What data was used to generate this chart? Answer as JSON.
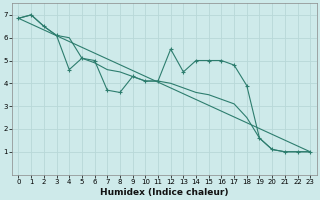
{
  "xlabel": "Humidex (Indice chaleur)",
  "xlim": [
    -0.5,
    23.5
  ],
  "ylim": [
    0,
    7.5
  ],
  "yticks": [
    1,
    2,
    3,
    4,
    5,
    6,
    7
  ],
  "xticks": [
    0,
    1,
    2,
    3,
    4,
    5,
    6,
    7,
    8,
    9,
    10,
    11,
    12,
    13,
    14,
    15,
    16,
    17,
    18,
    19,
    20,
    21,
    22,
    23
  ],
  "bg_color": "#ceeaea",
  "grid_color": "#b8d8d8",
  "line_color": "#2d7d6e",
  "series1_x": [
    0,
    1,
    2,
    3,
    4,
    5,
    6,
    7,
    8,
    9,
    10,
    11,
    12,
    13,
    14,
    15,
    16,
    17,
    18,
    19,
    20,
    21,
    22,
    23
  ],
  "series1_y": [
    6.85,
    7.0,
    6.5,
    6.1,
    4.6,
    5.1,
    5.0,
    3.7,
    3.6,
    4.3,
    4.1,
    4.1,
    5.5,
    4.5,
    5.0,
    5.0,
    5.0,
    4.8,
    3.9,
    1.6,
    1.1,
    1.0,
    1.0,
    1.0
  ],
  "series2_x": [
    0,
    1,
    2,
    3,
    4,
    5,
    6,
    7,
    8,
    9,
    10,
    11,
    12,
    13,
    14,
    15,
    16,
    17,
    18,
    19,
    20,
    21,
    22,
    23
  ],
  "series2_y": [
    6.85,
    7.0,
    6.5,
    6.1,
    6.0,
    5.1,
    4.9,
    4.6,
    4.5,
    4.3,
    4.1,
    4.1,
    4.0,
    3.8,
    3.6,
    3.5,
    3.3,
    3.1,
    2.5,
    1.6,
    1.1,
    1.0,
    1.0,
    1.0
  ],
  "series3_x": [
    0,
    23
  ],
  "series3_y": [
    6.85,
    1.0
  ],
  "xlabel_fontsize": 6.5,
  "xlabel_fontweight": "bold",
  "tick_fontsize": 5.0
}
